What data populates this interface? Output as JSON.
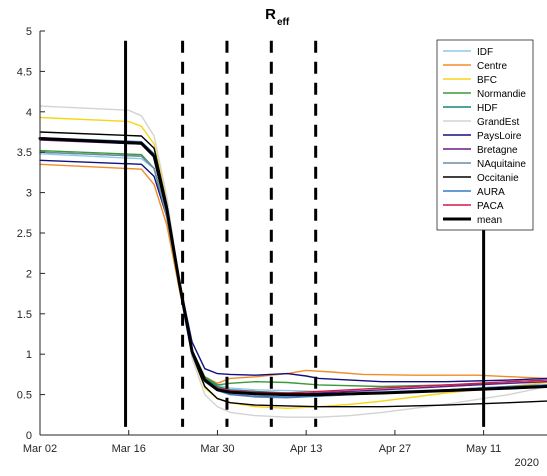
{
  "chart_data": {
    "type": "line",
    "title": "R",
    "title_subscript": "eff",
    "x_ticks": [
      "Mar 02",
      "Mar 16",
      "Mar 30",
      "Apr 13",
      "Apr 27",
      "May 11"
    ],
    "x_tick_days": [
      1,
      15,
      29,
      43,
      57,
      71
    ],
    "year_label": "2020",
    "xlim_days": [
      1,
      81
    ],
    "ylim": [
      0,
      5
    ],
    "y_ticks": [
      "0",
      "0.5",
      "1",
      "1.5",
      "2",
      "2.5",
      "3",
      "3.5",
      "4",
      "4.5",
      "5"
    ],
    "y_tick_values": [
      0,
      0.5,
      1,
      1.5,
      2,
      2.5,
      3,
      3.5,
      4,
      4.5,
      5
    ],
    "grid": false,
    "legend_position": "top-right",
    "vertical_lines": [
      {
        "day": 14.5,
        "style": "solid"
      },
      {
        "day": 23.5,
        "style": "dashed"
      },
      {
        "day": 30.5,
        "style": "dashed"
      },
      {
        "day": 37.5,
        "style": "dashed"
      },
      {
        "day": 44.5,
        "style": "dashed"
      },
      {
        "day": 71,
        "style": "solid"
      }
    ],
    "series": [
      {
        "name": "IDF",
        "color": "#8ecae6",
        "points": [
          [
            1,
            3.48
          ],
          [
            17,
            3.42
          ],
          [
            19,
            3.3
          ],
          [
            21,
            2.7
          ],
          [
            23,
            1.8
          ],
          [
            25,
            1.0
          ],
          [
            27,
            0.7
          ],
          [
            29,
            0.62
          ],
          [
            31,
            0.58
          ],
          [
            35,
            0.56
          ],
          [
            40,
            0.55
          ],
          [
            45,
            0.54
          ],
          [
            55,
            0.54
          ],
          [
            65,
            0.56
          ],
          [
            75,
            0.6
          ],
          [
            81,
            0.62
          ]
        ]
      },
      {
        "name": "Centre",
        "color": "#f28c28",
        "points": [
          [
            1,
            3.35
          ],
          [
            17,
            3.29
          ],
          [
            19,
            3.1
          ],
          [
            21,
            2.6
          ],
          [
            23,
            1.8
          ],
          [
            25,
            1.05
          ],
          [
            27,
            0.72
          ],
          [
            29,
            0.64
          ],
          [
            31,
            0.7
          ],
          [
            35,
            0.72
          ],
          [
            40,
            0.76
          ],
          [
            43,
            0.8
          ],
          [
            47,
            0.78
          ],
          [
            52,
            0.75
          ],
          [
            60,
            0.74
          ],
          [
            70,
            0.74
          ],
          [
            81,
            0.7
          ]
        ]
      },
      {
        "name": "BFC",
        "color": "#f7d516",
        "points": [
          [
            1,
            3.93
          ],
          [
            15,
            3.88
          ],
          [
            17,
            3.82
          ],
          [
            19,
            3.6
          ],
          [
            21,
            2.9
          ],
          [
            23,
            1.9
          ],
          [
            25,
            1.0
          ],
          [
            27,
            0.58
          ],
          [
            29,
            0.45
          ],
          [
            31,
            0.4
          ],
          [
            35,
            0.35
          ],
          [
            40,
            0.33
          ],
          [
            45,
            0.35
          ],
          [
            50,
            0.38
          ],
          [
            55,
            0.42
          ],
          [
            65,
            0.52
          ],
          [
            75,
            0.6
          ],
          [
            81,
            0.65
          ]
        ]
      },
      {
        "name": "Normandie",
        "color": "#3a9a3a",
        "points": [
          [
            1,
            3.52
          ],
          [
            17,
            3.47
          ],
          [
            19,
            3.3
          ],
          [
            21,
            2.7
          ],
          [
            23,
            1.85
          ],
          [
            25,
            1.05
          ],
          [
            27,
            0.72
          ],
          [
            29,
            0.62
          ],
          [
            31,
            0.64
          ],
          [
            35,
            0.66
          ],
          [
            40,
            0.65
          ],
          [
            45,
            0.62
          ],
          [
            55,
            0.6
          ],
          [
            65,
            0.62
          ],
          [
            75,
            0.64
          ],
          [
            81,
            0.66
          ]
        ]
      },
      {
        "name": "HDF",
        "color": "#17857a",
        "points": [
          [
            1,
            3.5
          ],
          [
            17,
            3.45
          ],
          [
            19,
            3.3
          ],
          [
            21,
            2.7
          ],
          [
            23,
            1.85
          ],
          [
            25,
            1.02
          ],
          [
            27,
            0.7
          ],
          [
            29,
            0.6
          ],
          [
            31,
            0.56
          ],
          [
            35,
            0.54
          ],
          [
            40,
            0.52
          ],
          [
            45,
            0.5
          ],
          [
            55,
            0.52
          ],
          [
            65,
            0.55
          ],
          [
            75,
            0.58
          ],
          [
            81,
            0.6
          ]
        ]
      },
      {
        "name": "GrandEst",
        "color": "#d3d3d3",
        "points": [
          [
            1,
            4.07
          ],
          [
            15,
            4.02
          ],
          [
            17,
            3.95
          ],
          [
            19,
            3.7
          ],
          [
            21,
            2.95
          ],
          [
            23,
            1.9
          ],
          [
            25,
            0.95
          ],
          [
            27,
            0.5
          ],
          [
            29,
            0.35
          ],
          [
            31,
            0.28
          ],
          [
            35,
            0.24
          ],
          [
            40,
            0.22
          ],
          [
            45,
            0.22
          ],
          [
            50,
            0.24
          ],
          [
            55,
            0.28
          ],
          [
            65,
            0.38
          ],
          [
            75,
            0.5
          ],
          [
            81,
            0.6
          ]
        ]
      },
      {
        "name": "PaysLoire",
        "color": "#101080",
        "points": [
          [
            1,
            3.4
          ],
          [
            17,
            3.35
          ],
          [
            19,
            3.2
          ],
          [
            21,
            2.7
          ],
          [
            23,
            1.9
          ],
          [
            25,
            1.15
          ],
          [
            27,
            0.82
          ],
          [
            29,
            0.76
          ],
          [
            31,
            0.75
          ],
          [
            35,
            0.74
          ],
          [
            40,
            0.76
          ],
          [
            43,
            0.73
          ],
          [
            45,
            0.7
          ],
          [
            50,
            0.68
          ],
          [
            55,
            0.66
          ],
          [
            65,
            0.66
          ],
          [
            75,
            0.68
          ],
          [
            81,
            0.7
          ]
        ]
      },
      {
        "name": "Bretagne",
        "color": "#6a1b8a",
        "points": [
          [
            1,
            3.65
          ],
          [
            17,
            3.6
          ],
          [
            19,
            3.45
          ],
          [
            21,
            2.8
          ],
          [
            23,
            1.9
          ],
          [
            25,
            1.02
          ],
          [
            27,
            0.68
          ],
          [
            29,
            0.58
          ],
          [
            31,
            0.54
          ],
          [
            35,
            0.52
          ],
          [
            40,
            0.5
          ],
          [
            45,
            0.52
          ],
          [
            55,
            0.56
          ],
          [
            65,
            0.6
          ],
          [
            75,
            0.64
          ],
          [
            81,
            0.66
          ]
        ]
      },
      {
        "name": "NAquitaine",
        "color": "#6e8ca0",
        "points": [
          [
            1,
            3.5
          ],
          [
            17,
            3.45
          ],
          [
            19,
            3.3
          ],
          [
            21,
            2.7
          ],
          [
            23,
            1.85
          ],
          [
            25,
            1.02
          ],
          [
            27,
            0.68
          ],
          [
            29,
            0.56
          ],
          [
            31,
            0.5
          ],
          [
            35,
            0.47
          ],
          [
            40,
            0.46
          ],
          [
            45,
            0.48
          ],
          [
            55,
            0.52
          ],
          [
            65,
            0.56
          ],
          [
            75,
            0.6
          ],
          [
            81,
            0.62
          ]
        ]
      },
      {
        "name": "Occitanie",
        "color": "#000000",
        "points": [
          [
            1,
            3.75
          ],
          [
            17,
            3.7
          ],
          [
            19,
            3.55
          ],
          [
            21,
            2.85
          ],
          [
            23,
            1.9
          ],
          [
            25,
            1.0
          ],
          [
            27,
            0.6
          ],
          [
            29,
            0.45
          ],
          [
            31,
            0.4
          ],
          [
            35,
            0.37
          ],
          [
            40,
            0.36
          ],
          [
            45,
            0.35
          ],
          [
            55,
            0.35
          ],
          [
            65,
            0.37
          ],
          [
            75,
            0.4
          ],
          [
            81,
            0.42
          ]
        ]
      },
      {
        "name": "AURA",
        "color": "#3a78c0",
        "points": [
          [
            1,
            3.68
          ],
          [
            17,
            3.63
          ],
          [
            19,
            3.48
          ],
          [
            21,
            2.8
          ],
          [
            23,
            1.9
          ],
          [
            25,
            1.0
          ],
          [
            27,
            0.66
          ],
          [
            29,
            0.55
          ],
          [
            31,
            0.5
          ],
          [
            35,
            0.48
          ],
          [
            40,
            0.47
          ],
          [
            45,
            0.48
          ],
          [
            55,
            0.52
          ],
          [
            65,
            0.56
          ],
          [
            75,
            0.6
          ],
          [
            81,
            0.62
          ]
        ]
      },
      {
        "name": "PACA",
        "color": "#d11a4a",
        "points": [
          [
            1,
            3.66
          ],
          [
            17,
            3.61
          ],
          [
            19,
            3.46
          ],
          [
            21,
            2.8
          ],
          [
            23,
            1.9
          ],
          [
            25,
            1.02
          ],
          [
            27,
            0.68
          ],
          [
            29,
            0.58
          ],
          [
            31,
            0.55
          ],
          [
            35,
            0.53
          ],
          [
            40,
            0.52
          ],
          [
            45,
            0.54
          ],
          [
            55,
            0.58
          ],
          [
            65,
            0.62
          ],
          [
            75,
            0.66
          ],
          [
            81,
            0.68
          ]
        ]
      },
      {
        "name": "mean",
        "color": "#000000",
        "bold": true,
        "points": [
          [
            1,
            3.67
          ],
          [
            17,
            3.61
          ],
          [
            19,
            3.45
          ],
          [
            21,
            2.8
          ],
          [
            23,
            1.88
          ],
          [
            25,
            1.03
          ],
          [
            27,
            0.68
          ],
          [
            29,
            0.56
          ],
          [
            31,
            0.53
          ],
          [
            35,
            0.51
          ],
          [
            40,
            0.5
          ],
          [
            45,
            0.5
          ],
          [
            55,
            0.52
          ],
          [
            65,
            0.55
          ],
          [
            75,
            0.58
          ],
          [
            81,
            0.6
          ]
        ]
      }
    ]
  }
}
